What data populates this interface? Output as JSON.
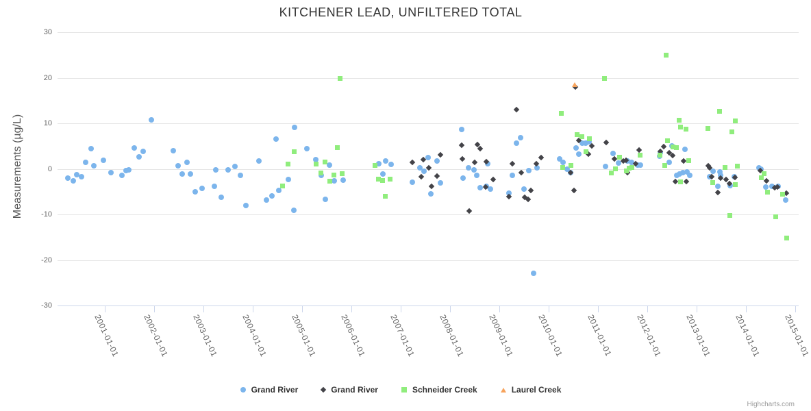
{
  "credit": "Highcharts.com",
  "colors": {
    "grid": "#e6e6e6",
    "axis_line": "#ccd6eb",
    "tick_label": "#666666",
    "title_text": "#333333",
    "series_blue": "#7cb5ec",
    "series_black": "#434348",
    "series_green": "#90ed7d",
    "series_orange": "#f7a35c"
  },
  "chart_data": {
    "type": "scatter",
    "title": "KITCHENER LEAD, UNFILTERED TOTAL",
    "xlabel": "",
    "ylabel": "Measurements (µg/L)",
    "ylim": [
      -30,
      30
    ],
    "yticks": [
      30,
      20,
      10,
      0,
      -10,
      -20,
      -30
    ],
    "xlim": [
      2000.04,
      2015.07
    ],
    "xtick_years": [
      2001,
      2002,
      2003,
      2004,
      2005,
      2006,
      2007,
      2008,
      2009,
      2010,
      2011,
      2012,
      2013,
      2014,
      2015
    ],
    "xtick_labels": [
      "2001-01-01",
      "2002-01-01",
      "2003-01-01",
      "2004-01-01",
      "2005-01-01",
      "2006-01-01",
      "2007-01-01",
      "2008-01-01",
      "2009-01-01",
      "2010-01-01",
      "2011-01-01",
      "2012-01-01",
      "2013-01-01",
      "2014-01-01",
      "2015-01-01"
    ],
    "grid": "horizontal-only",
    "legend_position": "bottom-center",
    "series": [
      {
        "name": "Grand River",
        "marker": "circle",
        "color": "#7cb5ec",
        "points": [
          [
            2000.25,
            -2.0
          ],
          [
            2000.36,
            -2.6
          ],
          [
            2000.43,
            -1.3
          ],
          [
            2000.53,
            -1.8
          ],
          [
            2000.61,
            1.5
          ],
          [
            2000.72,
            4.5
          ],
          [
            2000.78,
            0.7
          ],
          [
            2000.97,
            1.9
          ],
          [
            2001.12,
            -0.8
          ],
          [
            2001.35,
            -1.5
          ],
          [
            2001.43,
            -0.4
          ],
          [
            2001.48,
            -0.2
          ],
          [
            2001.6,
            4.6
          ],
          [
            2001.69,
            2.6
          ],
          [
            2001.77,
            3.9
          ],
          [
            2001.95,
            10.8
          ],
          [
            2002.39,
            4.0
          ],
          [
            2002.49,
            0.7
          ],
          [
            2002.57,
            -1.1
          ],
          [
            2002.66,
            1.5
          ],
          [
            2002.74,
            -1.2
          ],
          [
            2002.83,
            -5.0
          ],
          [
            2002.97,
            -4.3
          ],
          [
            2003.22,
            -3.8
          ],
          [
            2003.25,
            -0.2
          ],
          [
            2003.36,
            -6.3
          ],
          [
            2003.5,
            -0.3
          ],
          [
            2003.64,
            0.6
          ],
          [
            2003.75,
            -1.5
          ],
          [
            2003.86,
            -8.0
          ],
          [
            2004.12,
            1.7
          ],
          [
            2004.28,
            -6.9
          ],
          [
            2004.39,
            -6.0
          ],
          [
            2004.47,
            6.5
          ],
          [
            2004.53,
            -4.8
          ],
          [
            2004.72,
            -2.3
          ],
          [
            2004.83,
            -9.1
          ],
          [
            2004.85,
            9.1
          ],
          [
            2005.1,
            4.5
          ],
          [
            2005.28,
            2.0
          ],
          [
            2005.39,
            -1.4
          ],
          [
            2005.47,
            -6.7
          ],
          [
            2005.56,
            0.8
          ],
          [
            2005.65,
            -2.6
          ],
          [
            2005.83,
            -2.5
          ],
          [
            2006.56,
            1.2
          ],
          [
            2006.64,
            -1.2
          ],
          [
            2006.69,
            1.8
          ],
          [
            2006.81,
            1.0
          ],
          [
            2007.23,
            -2.9
          ],
          [
            2007.39,
            0.2
          ],
          [
            2007.47,
            -0.5
          ],
          [
            2007.56,
            2.5
          ],
          [
            2007.61,
            -5.5
          ],
          [
            2007.73,
            1.7
          ],
          [
            2007.81,
            -3.1
          ],
          [
            2008.24,
            8.6
          ],
          [
            2008.26,
            -2.0
          ],
          [
            2008.38,
            0.2
          ],
          [
            2008.48,
            -0.3
          ],
          [
            2008.54,
            -1.5
          ],
          [
            2008.61,
            -4.1
          ],
          [
            2008.73,
            -3.8
          ],
          [
            2008.76,
            1.1
          ],
          [
            2008.82,
            -4.4
          ],
          [
            2009.19,
            -5.3
          ],
          [
            2009.26,
            -1.4
          ],
          [
            2009.34,
            5.6
          ],
          [
            2009.43,
            6.9
          ],
          [
            2009.5,
            -4.4
          ],
          [
            2009.6,
            -0.4
          ],
          [
            2009.7,
            -23.0
          ],
          [
            2009.76,
            0.2
          ],
          [
            2010.22,
            2.2
          ],
          [
            2010.29,
            1.5
          ],
          [
            2010.38,
            0.0
          ],
          [
            2010.45,
            -0.8
          ],
          [
            2010.55,
            4.6
          ],
          [
            2010.61,
            3.2
          ],
          [
            2010.68,
            5.7
          ],
          [
            2010.75,
            5.6
          ],
          [
            2010.82,
            5.9
          ],
          [
            2011.15,
            0.5
          ],
          [
            2011.31,
            3.4
          ],
          [
            2011.42,
            1.3
          ],
          [
            2011.6,
            1.8
          ],
          [
            2011.68,
            1.4
          ],
          [
            2011.8,
            0.8
          ],
          [
            2011.86,
            0.9
          ],
          [
            2012.25,
            2.8
          ],
          [
            2012.27,
            3.5
          ],
          [
            2012.44,
            1.5
          ],
          [
            2012.5,
            5.0
          ],
          [
            2012.6,
            -1.5
          ],
          [
            2012.65,
            -1.1
          ],
          [
            2012.72,
            -0.8
          ],
          [
            2012.76,
            4.3
          ],
          [
            2012.8,
            -0.7
          ],
          [
            2012.86,
            -1.4
          ],
          [
            2013.26,
            -1.7
          ],
          [
            2013.33,
            -0.5
          ],
          [
            2013.43,
            -3.8
          ],
          [
            2013.47,
            -0.7
          ],
          [
            2013.49,
            -1.4
          ],
          [
            2013.68,
            -3.7
          ],
          [
            2013.77,
            -1.7
          ],
          [
            2014.27,
            0.3
          ],
          [
            2014.31,
            0.0
          ],
          [
            2014.41,
            -4.0
          ],
          [
            2014.53,
            -3.8
          ],
          [
            2014.66,
            -3.9
          ],
          [
            2014.81,
            -6.9
          ]
        ]
      },
      {
        "name": "Grand River",
        "marker": "diamond",
        "color": "#434348",
        "points": [
          [
            2007.23,
            1.5
          ],
          [
            2007.41,
            -1.7
          ],
          [
            2007.46,
            2.0
          ],
          [
            2007.57,
            0.2
          ],
          [
            2007.62,
            -3.8
          ],
          [
            2007.74,
            -1.6
          ],
          [
            2007.8,
            3.1
          ],
          [
            2008.24,
            5.2
          ],
          [
            2008.25,
            2.2
          ],
          [
            2008.39,
            -9.2
          ],
          [
            2008.5,
            1.4
          ],
          [
            2008.56,
            5.3
          ],
          [
            2008.61,
            4.4
          ],
          [
            2008.72,
            -4.0
          ],
          [
            2008.74,
            1.6
          ],
          [
            2008.87,
            -2.3
          ],
          [
            2009.2,
            -6.1
          ],
          [
            2009.26,
            1.1
          ],
          [
            2009.34,
            13.0
          ],
          [
            2009.44,
            -0.8
          ],
          [
            2009.52,
            -6.2
          ],
          [
            2009.59,
            -6.7
          ],
          [
            2009.64,
            -4.8
          ],
          [
            2009.75,
            1.1
          ],
          [
            2009.85,
            2.5
          ],
          [
            2010.44,
            -0.8
          ],
          [
            2010.51,
            -4.7
          ],
          [
            2010.54,
            18.0
          ],
          [
            2010.61,
            6.2
          ],
          [
            2010.81,
            3.3
          ],
          [
            2010.88,
            5.0
          ],
          [
            2011.16,
            5.8
          ],
          [
            2011.34,
            2.2
          ],
          [
            2011.51,
            1.7
          ],
          [
            2011.57,
            1.9
          ],
          [
            2011.6,
            -0.8
          ],
          [
            2011.76,
            1.2
          ],
          [
            2011.84,
            4.2
          ],
          [
            2012.27,
            3.8
          ],
          [
            2012.34,
            4.9
          ],
          [
            2012.44,
            3.5
          ],
          [
            2012.51,
            2.9
          ],
          [
            2012.57,
            -2.8
          ],
          [
            2012.74,
            1.7
          ],
          [
            2012.79,
            -2.8
          ],
          [
            2013.23,
            0.7
          ],
          [
            2013.26,
            0.2
          ],
          [
            2013.31,
            -1.8
          ],
          [
            2013.43,
            -5.2
          ],
          [
            2013.48,
            -2.1
          ],
          [
            2013.6,
            -2.4
          ],
          [
            2013.67,
            -3.3
          ],
          [
            2013.78,
            -1.9
          ],
          [
            2014.29,
            -0.4
          ],
          [
            2014.42,
            -2.7
          ],
          [
            2014.59,
            -4.1
          ],
          [
            2014.64,
            -4.0
          ],
          [
            2014.82,
            -5.4
          ]
        ]
      },
      {
        "name": "Schneider Creek",
        "marker": "square",
        "color": "#90ed7d",
        "points": [
          [
            2004.6,
            -3.7
          ],
          [
            2004.72,
            1.1
          ],
          [
            2004.84,
            3.8
          ],
          [
            2005.28,
            1.0
          ],
          [
            2005.38,
            -0.9
          ],
          [
            2005.46,
            1.5
          ],
          [
            2005.56,
            -2.7
          ],
          [
            2005.64,
            -1.3
          ],
          [
            2005.72,
            4.6
          ],
          [
            2005.77,
            19.9
          ],
          [
            2005.81,
            -1.0
          ],
          [
            2006.48,
            0.8
          ],
          [
            2006.55,
            -2.3
          ],
          [
            2006.63,
            -2.5
          ],
          [
            2006.68,
            -6.0
          ],
          [
            2006.79,
            -2.2
          ],
          [
            2010.25,
            12.2
          ],
          [
            2010.28,
            0.3
          ],
          [
            2010.45,
            0.7
          ],
          [
            2010.57,
            7.5
          ],
          [
            2010.67,
            7.1
          ],
          [
            2010.76,
            3.8
          ],
          [
            2010.83,
            6.6
          ],
          [
            2011.13,
            19.9
          ],
          [
            2011.27,
            -0.9
          ],
          [
            2011.36,
            0.0
          ],
          [
            2011.44,
            2.6
          ],
          [
            2011.57,
            -0.5
          ],
          [
            2011.63,
            0.1
          ],
          [
            2011.69,
            0.3
          ],
          [
            2011.85,
            3.0
          ],
          [
            2012.26,
            3.0
          ],
          [
            2012.35,
            0.8
          ],
          [
            2012.38,
            25.0
          ],
          [
            2012.41,
            6.1
          ],
          [
            2012.52,
            4.8
          ],
          [
            2012.59,
            4.6
          ],
          [
            2012.65,
            10.7
          ],
          [
            2012.67,
            -2.9
          ],
          [
            2012.68,
            9.2
          ],
          [
            2012.78,
            8.7
          ],
          [
            2012.84,
            1.8
          ],
          [
            2013.23,
            8.8
          ],
          [
            2013.32,
            -3.0
          ],
          [
            2013.47,
            12.7
          ],
          [
            2013.58,
            0.3
          ],
          [
            2013.67,
            -10.2
          ],
          [
            2013.72,
            8.1
          ],
          [
            2013.78,
            10.5
          ],
          [
            2013.79,
            -3.5
          ],
          [
            2013.83,
            0.6
          ],
          [
            2014.31,
            -1.9
          ],
          [
            2014.37,
            -1.1
          ],
          [
            2014.44,
            -5.1
          ],
          [
            2014.61,
            -10.6
          ],
          [
            2014.74,
            -5.5
          ],
          [
            2014.82,
            -15.2
          ]
        ]
      },
      {
        "name": "Laurel Creek",
        "marker": "triangle",
        "color": "#f7a35c",
        "points": [
          [
            2010.54,
            18.4
          ]
        ]
      }
    ]
  }
}
